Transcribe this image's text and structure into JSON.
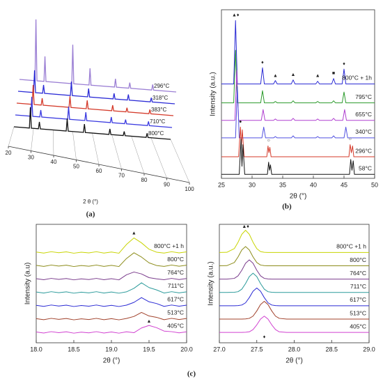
{
  "captions": [
    "(a)",
    "(b)",
    "(c)"
  ],
  "chart_data": [
    {
      "type": "waterfall",
      "xlabel": "2 θ (°)",
      "xlim": [
        20,
        100
      ],
      "ylim": [
        0,
        25
      ],
      "xticks": [
        20,
        30,
        40,
        50,
        60,
        70,
        80,
        90,
        100
      ],
      "x": [
        20,
        27.9,
        28.4,
        28.9,
        32.5,
        33,
        33.5,
        46.7,
        47.2,
        47.7,
        55.5,
        56,
        56.5,
        68.5,
        69,
        69.5,
        75.8,
        76.3,
        76.8,
        87.5,
        88,
        88.5,
        100
      ],
      "series": [
        {
          "name": "296°C",
          "color": "#9b7fd4",
          "values": [
            0,
            0,
            22,
            0,
            0,
            9,
            0,
            0,
            14,
            0,
            0,
            6,
            0,
            0,
            3,
            0,
            0,
            2,
            0,
            0,
            2,
            0,
            0
          ]
        },
        {
          "name": "318°C",
          "color": "#2b2bd6",
          "values": [
            0,
            0,
            8,
            0,
            0,
            3,
            0,
            0,
            5,
            0,
            0,
            3,
            0,
            0,
            2,
            0,
            0,
            2,
            0,
            0,
            1.5,
            0,
            0
          ]
        },
        {
          "name": "383°C",
          "color": "#d43a2a",
          "values": [
            0,
            0,
            7,
            0,
            0,
            2.5,
            0,
            0,
            4,
            0,
            0,
            3,
            0,
            0,
            2,
            0,
            0,
            1.5,
            0,
            0,
            1.5,
            0,
            0
          ]
        },
        {
          "name": "710°C",
          "color": "#3a3ae0",
          "values": [
            0,
            0,
            7,
            0,
            0,
            2.5,
            0,
            0,
            4.5,
            0,
            0,
            3,
            0,
            0,
            2,
            0,
            0,
            1.5,
            0,
            0,
            1.5,
            0,
            0
          ]
        },
        {
          "name": "800°C",
          "color": "#111111",
          "values": [
            0,
            0,
            7.5,
            0,
            0,
            2.5,
            0,
            0,
            4.5,
            0,
            0,
            3,
            0,
            0,
            2,
            0,
            0,
            1.5,
            0,
            0,
            1.5,
            0,
            0
          ]
        }
      ]
    },
    {
      "type": "line",
      "xlabel": "2θ (°)",
      "ylabel": "Intensity (a.u.)",
      "xlim": [
        25,
        50
      ],
      "ylim": [
        0,
        12.5
      ],
      "xticks": [
        25,
        30,
        35,
        40,
        45,
        50
      ],
      "series": [
        {
          "name": "800°C + 1h",
          "color": "#2a2ad4",
          "x": [
            25,
            27.0,
            27.3,
            27.6,
            31.4,
            31.7,
            32.0,
            33.5,
            33.8,
            34.1,
            36.4,
            36.7,
            37.0,
            40.4,
            40.7,
            41.0,
            43.0,
            43.3,
            43.6,
            44.7,
            45.0,
            45.3,
            50
          ],
          "values": [
            7,
            7,
            11.7,
            7,
            7,
            8.2,
            7,
            7,
            7.25,
            7,
            7,
            7.3,
            7,
            7,
            7.2,
            7,
            7,
            7.4,
            7,
            7,
            8.1,
            7,
            7
          ]
        },
        {
          "name": "795°C",
          "color": "#2a9a2a",
          "x": [
            25,
            27.0,
            27.3,
            27.6,
            31.4,
            31.7,
            32.0,
            33.5,
            33.8,
            34.1,
            36.4,
            36.7,
            37.0,
            40.4,
            40.7,
            41.0,
            43.0,
            43.3,
            43.6,
            44.7,
            45.0,
            45.3,
            50
          ],
          "values": [
            5.6,
            5.6,
            9.5,
            5.6,
            5.6,
            6.5,
            5.6,
            5.6,
            5.7,
            5.6,
            5.6,
            5.75,
            5.6,
            5.6,
            5.7,
            5.6,
            5.6,
            5.75,
            5.6,
            5.6,
            6.4,
            5.6,
            5.6
          ]
        },
        {
          "name": "655°C",
          "color": "#b040d0",
          "x": [
            25,
            27.2,
            27.5,
            27.8,
            31.5,
            31.8,
            32.1,
            33.5,
            33.8,
            34.1,
            36.4,
            36.7,
            37.0,
            40.4,
            40.7,
            41.0,
            43.0,
            43.3,
            43.6,
            44.8,
            45.1,
            45.4,
            50
          ],
          "values": [
            4.3,
            4.3,
            8.0,
            4.3,
            4.3,
            5.1,
            4.3,
            4.3,
            4.4,
            4.3,
            4.3,
            4.45,
            4.3,
            4.3,
            4.4,
            4.3,
            4.3,
            4.45,
            4.3,
            4.3,
            5.1,
            4.3,
            4.3
          ]
        },
        {
          "name": "340°C",
          "color": "#5050e0",
          "x": [
            25,
            27.3,
            27.6,
            27.9,
            31.6,
            31.9,
            32.2,
            33.5,
            33.8,
            34.1,
            36.4,
            36.7,
            37.0,
            40.4,
            40.7,
            41.0,
            43.0,
            43.3,
            43.6,
            45.0,
            45.3,
            45.6,
            50
          ],
          "values": [
            3,
            3,
            6.8,
            3,
            3,
            3.8,
            3,
            3,
            3.1,
            3,
            3,
            3.15,
            3,
            3,
            3.1,
            3,
            3,
            3.15,
            3,
            3,
            3.8,
            3,
            3
          ]
        },
        {
          "name": "296°C",
          "color": "#d43a2a",
          "x": [
            25,
            27.8,
            28.1,
            28.25,
            28.4,
            28.7,
            32.4,
            32.6,
            32.75,
            32.9,
            33.1,
            45.8,
            46.0,
            46.2,
            46.4,
            46.6,
            50
          ],
          "values": [
            1.6,
            1.6,
            3.8,
            2.4,
            3.6,
            1.6,
            1.6,
            2.4,
            1.9,
            2.3,
            1.6,
            1.6,
            2.5,
            1.9,
            2.4,
            1.6,
            1.6
          ]
        },
        {
          "name": "58°C",
          "color": "#111111",
          "x": [
            25,
            27.9,
            28.2,
            28.35,
            28.5,
            28.8,
            32.5,
            32.7,
            32.85,
            33.0,
            33.2,
            45.9,
            46.1,
            46.3,
            46.5,
            46.7,
            50
          ],
          "values": [
            0.3,
            0.3,
            2.9,
            0.9,
            2.5,
            0.3,
            0.3,
            1.2,
            0.6,
            1.0,
            0.3,
            0.3,
            1.4,
            0.6,
            1.3,
            0.3,
            0.3
          ]
        }
      ],
      "annotations": [
        {
          "text": "▲♦",
          "x": 27.3,
          "y": 12.1
        },
        {
          "text": "♦",
          "x": 31.7,
          "y": 8.6
        },
        {
          "text": "▲",
          "x": 33.8,
          "y": 7.6
        },
        {
          "text": "▲",
          "x": 36.7,
          "y": 7.7
        },
        {
          "text": "▲",
          "x": 40.7,
          "y": 7.6
        },
        {
          "text": "■",
          "x": 43.3,
          "y": 7.8
        },
        {
          "text": "♦",
          "x": 45.0,
          "y": 8.5
        },
        {
          "text": "●",
          "x": 28.1,
          "y": 4.2
        },
        {
          "text": "○",
          "x": 32.7,
          "y": 2.8
        },
        {
          "text": "○",
          "x": 46.0,
          "y": 2.9
        }
      ]
    },
    {
      "type": "line",
      "xlabel": "2θ (°)",
      "ylabel": "Intensity (a.u)",
      "xlim": [
        18,
        20
      ],
      "ylim": [
        0,
        8
      ],
      "xticks": [
        {
          "value": 18,
          "label": "18.0"
        },
        {
          "value": 18.5,
          "label": "18.5"
        },
        {
          "value": 19,
          "label": "19.0"
        },
        {
          "value": 19.5,
          "label": "19.5"
        },
        {
          "value": 20,
          "label": "20.0"
        }
      ],
      "x": [
        18.0,
        18.1,
        18.2,
        18.3,
        18.4,
        18.5,
        18.6,
        18.7,
        18.8,
        18.9,
        19.0,
        19.1,
        19.2,
        19.3,
        19.4,
        19.5,
        19.6,
        19.7,
        19.8,
        19.9,
        20.0
      ],
      "series": [
        {
          "name": "800°C +1 h",
          "color": "#c8d400",
          "values": [
            6.13,
            6.06,
            6.15,
            6.08,
            6.14,
            6.05,
            6.12,
            6.07,
            6.15,
            6.06,
            6.13,
            6.05,
            6.64,
            7.08,
            6.75,
            6.32,
            6.12,
            6.06,
            6.15,
            6.07,
            6.14
          ]
        },
        {
          "name": "800°C",
          "color": "#8c8c1a",
          "values": [
            5.23,
            5.16,
            5.25,
            5.18,
            5.24,
            5.15,
            5.22,
            5.17,
            5.25,
            5.16,
            5.23,
            5.15,
            5.69,
            6.08,
            5.79,
            5.4,
            5.22,
            5.16,
            5.25,
            5.17,
            5.24
          ]
        },
        {
          "name": "764°C",
          "color": "#7a3c8c",
          "values": [
            4.33,
            4.26,
            4.35,
            4.28,
            4.34,
            4.25,
            4.32,
            4.27,
            4.35,
            4.26,
            4.33,
            4.25,
            4.59,
            4.78,
            4.65,
            4.4,
            4.32,
            4.26,
            4.35,
            4.27,
            4.34
          ]
        },
        {
          "name": "711°C",
          "color": "#2a9a9a",
          "values": [
            3.43,
            3.36,
            3.45,
            3.38,
            3.44,
            3.35,
            3.42,
            3.37,
            3.45,
            3.36,
            3.43,
            3.35,
            3.44,
            3.68,
            4.05,
            3.73,
            3.57,
            3.36,
            3.45,
            3.37,
            3.44
          ]
        },
        {
          "name": "617°C",
          "color": "#2a2ad4",
          "values": [
            2.53,
            2.46,
            2.55,
            2.48,
            2.54,
            2.45,
            2.52,
            2.47,
            2.55,
            2.46,
            2.53,
            2.45,
            2.54,
            2.73,
            3.05,
            2.77,
            2.65,
            2.46,
            2.55,
            2.47,
            2.54
          ]
        },
        {
          "name": "513°C",
          "color": "#a0402a",
          "values": [
            1.63,
            1.56,
            1.65,
            1.58,
            1.64,
            1.55,
            1.62,
            1.57,
            1.65,
            1.56,
            1.63,
            1.55,
            1.64,
            1.78,
            2.05,
            1.81,
            1.72,
            1.56,
            1.65,
            1.57,
            1.64
          ]
        },
        {
          "name": "405°C",
          "color": "#d040d0",
          "values": [
            0.73,
            0.66,
            0.75,
            0.68,
            0.74,
            0.65,
            0.72,
            0.67,
            0.75,
            0.66,
            0.73,
            0.65,
            0.74,
            0.68,
            1.0,
            1.17,
            1.02,
            0.79,
            0.75,
            0.67,
            0.74
          ]
        }
      ],
      "annotations": [
        {
          "text": "▲",
          "x": 19.3,
          "y": 7.4
        },
        {
          "text": "▲",
          "x": 19.5,
          "y": 1.45
        }
      ]
    },
    {
      "type": "line",
      "xlabel": "2θ (°)",
      "ylabel": "Intensity (a.u.)",
      "xlim": [
        27,
        29
      ],
      "ylim": [
        0,
        8
      ],
      "xticks": [
        {
          "value": 27,
          "label": "27.0"
        },
        {
          "value": 27.5,
          "label": "27.5"
        },
        {
          "value": 28,
          "label": "28.0"
        },
        {
          "value": 28.5,
          "label": "28.5"
        },
        {
          "value": 29,
          "label": "29.0"
        }
      ],
      "x": [
        27.0,
        27.1,
        27.2,
        27.25,
        27.3,
        27.35,
        27.4,
        27.45,
        27.5,
        27.55,
        27.6,
        27.65,
        27.7,
        27.75,
        27.8,
        27.9,
        28.0,
        28.5,
        29.0
      ],
      "series": [
        {
          "name": "800°C +1 h",
          "color": "#c8d400",
          "values": [
            6.1,
            6.11,
            6.36,
            6.79,
            7.33,
            7.6,
            7.33,
            6.79,
            6.36,
            6.16,
            6.11,
            6.1,
            6.1,
            6.1,
            6.1,
            6.1,
            6.1,
            6.1,
            6.1
          ]
        },
        {
          "name": "800°C",
          "color": "#8c8c1a",
          "values": [
            5.2,
            5.21,
            5.42,
            5.8,
            6.27,
            6.5,
            6.27,
            5.8,
            5.42,
            5.25,
            5.21,
            5.2,
            5.2,
            5.2,
            5.2,
            5.2,
            5.2,
            5.2,
            5.2
          ]
        },
        {
          "name": "764°C",
          "color": "#7a3c8c",
          "values": [
            4.3,
            4.3,
            4.35,
            4.52,
            4.9,
            5.37,
            5.6,
            5.37,
            4.9,
            4.52,
            4.35,
            4.31,
            4.3,
            4.3,
            4.3,
            4.3,
            4.3,
            4.3,
            4.3
          ]
        },
        {
          "name": "711°C",
          "color": "#2a9a9a",
          "values": [
            3.4,
            3.4,
            3.41,
            3.45,
            3.62,
            4.0,
            4.47,
            4.7,
            4.47,
            4.0,
            3.62,
            3.45,
            3.41,
            3.4,
            3.4,
            3.4,
            3.4,
            3.4,
            3.4
          ]
        },
        {
          "name": "617°C",
          "color": "#2a2ad4",
          "values": [
            2.5,
            2.5,
            2.5,
            2.51,
            2.55,
            2.7,
            3.05,
            3.48,
            3.7,
            3.48,
            3.05,
            2.7,
            2.55,
            2.51,
            2.5,
            2.5,
            2.5,
            2.5,
            2.5
          ]
        },
        {
          "name": "513°C",
          "color": "#a0402a",
          "values": [
            1.6,
            1.6,
            1.6,
            1.6,
            1.6,
            1.61,
            1.65,
            1.8,
            2.15,
            2.58,
            2.8,
            2.58,
            2.15,
            1.8,
            1.65,
            1.6,
            1.6,
            1.6,
            1.6
          ]
        },
        {
          "name": "405°C",
          "color": "#d040d0",
          "values": [
            0.7,
            0.7,
            0.7,
            0.7,
            0.7,
            0.71,
            0.74,
            0.89,
            1.21,
            1.6,
            1.8,
            1.6,
            1.21,
            0.89,
            0.74,
            0.7,
            0.7,
            0.7,
            0.7
          ]
        }
      ],
      "annotations": [
        {
          "text": "▲♦",
          "x": 27.35,
          "y": 7.85
        },
        {
          "text": "♦",
          "x": 27.6,
          "y": 0.4
        }
      ]
    }
  ]
}
